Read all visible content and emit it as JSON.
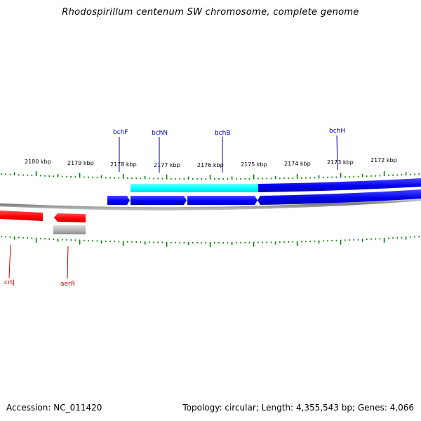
{
  "title": "Rhodospirillum centenum SW chromosome, complete genome",
  "accession": "Accession: NC_011420",
  "summary": "Topology: circular; Length: 4,355,543 bp; Genes: 4,066",
  "scale": {
    "labels": [
      "2180 kbp",
      "2179 kbp",
      "2178 kbp",
      "2177 kbp",
      "2176 kbp",
      "2175 kbp",
      "2174 kbp",
      "2173 kbp",
      "2172 kbp"
    ]
  },
  "genes": {
    "top": [
      "bchF",
      "bchN",
      "bchB",
      "bchH"
    ],
    "bottom": [
      "crtJ",
      "aerR"
    ]
  },
  "colors": {
    "forward": "#0000ee",
    "highlight": "#00ffff",
    "reverse": "#ff0000",
    "ticks": "#008000",
    "backbone": "#888888",
    "topLabel": "#0000aa",
    "bottomLabel": "#cc0000"
  }
}
